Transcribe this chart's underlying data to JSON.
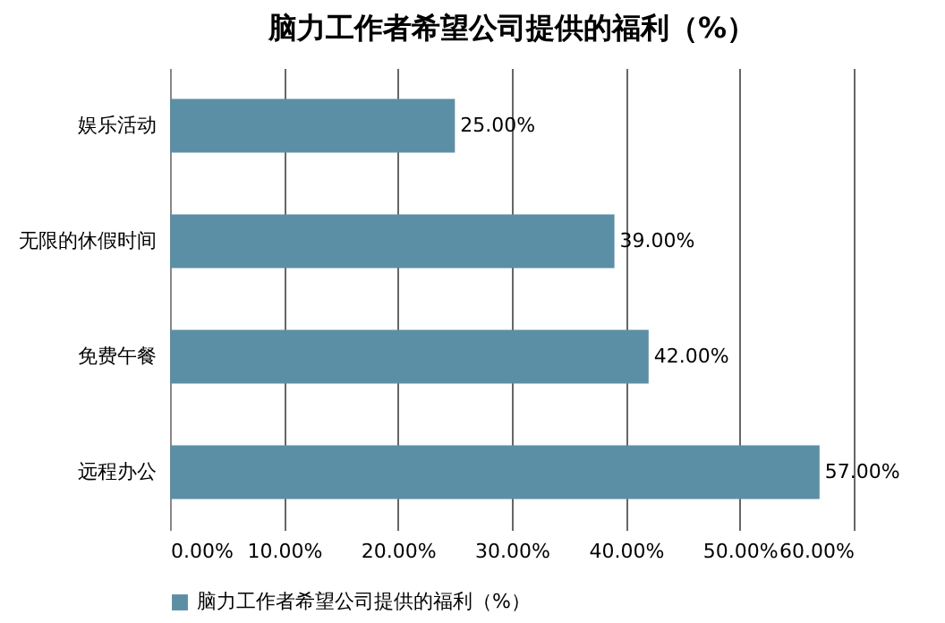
{
  "chart_data": {
    "type": "bar",
    "orientation": "horizontal",
    "title": "脑力工作者希望公司提供的福利（%）",
    "categories": [
      "娱乐活动",
      "无限的休假时间",
      "免费午餐",
      "远程办公"
    ],
    "series": [
      {
        "name": "脑力工作者希望公司提供的福利（%）",
        "color": "#5b8fa6",
        "values": [
          25,
          39,
          42,
          57
        ],
        "value_labels": [
          "25.00%",
          "39.00%",
          "42.00%",
          "57.00%"
        ]
      }
    ],
    "xlim": [
      0,
      60
    ],
    "xticks": [
      {
        "value": 0,
        "label": "0.00%"
      },
      {
        "value": 10,
        "label": "10.00%"
      },
      {
        "value": 20,
        "label": "20.00%"
      },
      {
        "value": 30,
        "label": "30.00%"
      },
      {
        "value": 40,
        "label": "40.00%"
      },
      {
        "value": 50,
        "label": "50.00%"
      },
      {
        "value": 60,
        "label": "60.00%"
      }
    ],
    "grid": "x",
    "legend": "bottom"
  }
}
